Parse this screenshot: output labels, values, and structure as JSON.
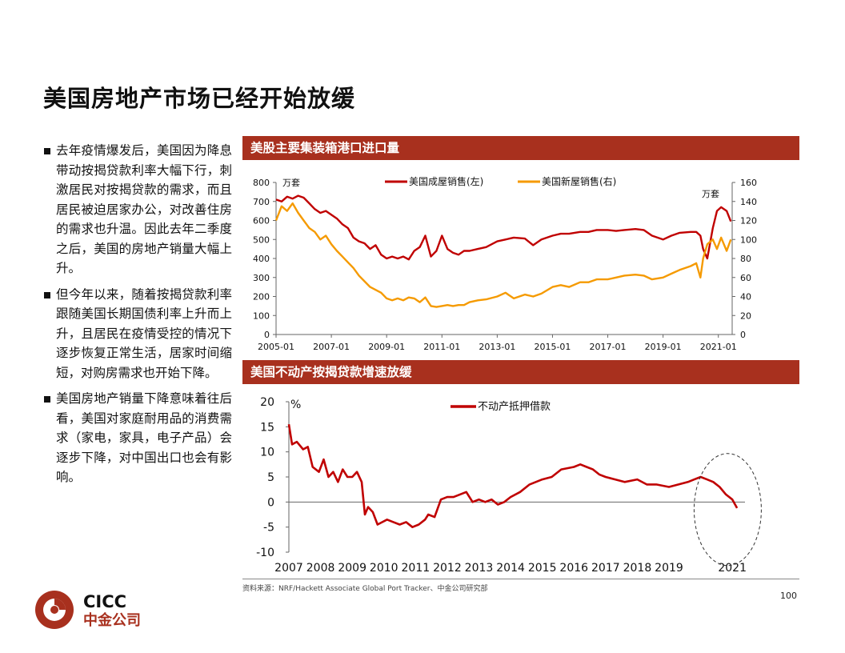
{
  "title": "美国房地产市场已经开始放缓",
  "bullets": [
    "去年疫情爆发后，美国因为降息带动按揭贷款利率大幅下行，刺激居民对按揭贷款的需求，而且居民被迫居家办公，对改善住房的需求也升温。因此去年二季度之后，美国的房地产销量大幅上升。",
    "但今年以来，随着按揭贷款利率跟随美国长期国债利率上升而上升，且居民在疫情受控的情况下逐步恢复正常生活，居家时间缩短，对购房需求也开始下降。",
    "美国房地产销量下降意味着往后看，美国对家庭耐用品的消费需求（家电，家具，电子产品）会逐步下降，对中国出口也会有影响。"
  ],
  "source": "资料来源：NRF/Hackett Associate Global Port Tracker、中金公司研究部",
  "page_number": "100",
  "logo": {
    "en": "CICC",
    "cn": "中金公司"
  },
  "colors": {
    "brand_red": "#a8301e",
    "line_red": "#c00000",
    "line_orange": "#f59a00"
  },
  "chart_data": [
    {
      "type": "line",
      "title": "美股主要集装箱港口进口量",
      "left_unit": "万套",
      "right_unit": "万套",
      "ylim_left": [
        0,
        800
      ],
      "ylim_right": [
        0,
        160
      ],
      "yticks_left": [
        0,
        100,
        200,
        300,
        400,
        500,
        600,
        700,
        800
      ],
      "yticks_right": [
        0,
        20,
        40,
        60,
        80,
        100,
        120,
        140,
        160
      ],
      "xlim": [
        2005.0,
        2021.5
      ],
      "xticks": [
        2005,
        2007,
        2009,
        2011,
        2013,
        2015,
        2017,
        2019,
        2021
      ],
      "xtick_labels": [
        "2005-01",
        "2007-01",
        "2009-01",
        "2011-01",
        "2013-01",
        "2015-01",
        "2017-01",
        "2019-01",
        "2021-01"
      ],
      "legend_position": "top-center",
      "grid": false,
      "series": [
        {
          "name": "美国成屋销售(左)",
          "axis": "left",
          "color": "#c00000",
          "x": [
            2005.0,
            2005.2,
            2005.4,
            2005.6,
            2005.8,
            2006.0,
            2006.2,
            2006.4,
            2006.6,
            2006.8,
            2007.0,
            2007.2,
            2007.4,
            2007.6,
            2007.8,
            2008.0,
            2008.2,
            2008.4,
            2008.6,
            2008.8,
            2009.0,
            2009.2,
            2009.4,
            2009.6,
            2009.8,
            2010.0,
            2010.2,
            2010.4,
            2010.6,
            2010.8,
            2011.0,
            2011.2,
            2011.4,
            2011.6,
            2011.8,
            2012.0,
            2012.3,
            2012.6,
            2013.0,
            2013.3,
            2013.6,
            2014.0,
            2014.3,
            2014.6,
            2015.0,
            2015.3,
            2015.6,
            2016.0,
            2016.3,
            2016.6,
            2017.0,
            2017.3,
            2017.6,
            2018.0,
            2018.3,
            2018.6,
            2019.0,
            2019.3,
            2019.6,
            2020.0,
            2020.2,
            2020.35,
            2020.45,
            2020.6,
            2020.8,
            2020.95,
            2021.1,
            2021.3,
            2021.45
          ],
          "values": [
            710,
            700,
            725,
            715,
            730,
            720,
            690,
            660,
            640,
            650,
            630,
            610,
            580,
            560,
            510,
            490,
            480,
            450,
            470,
            420,
            400,
            410,
            400,
            410,
            395,
            440,
            460,
            520,
            410,
            440,
            520,
            450,
            430,
            420,
            440,
            440,
            450,
            460,
            490,
            500,
            510,
            505,
            470,
            500,
            520,
            530,
            530,
            540,
            540,
            550,
            550,
            545,
            550,
            555,
            550,
            520,
            500,
            520,
            535,
            540,
            540,
            520,
            450,
            400,
            560,
            650,
            670,
            650,
            595
          ]
        },
        {
          "name": "美国新屋销售(右)",
          "axis": "right",
          "color": "#f59a00",
          "x": [
            2005.0,
            2005.2,
            2005.4,
            2005.6,
            2005.8,
            2006.0,
            2006.2,
            2006.4,
            2006.6,
            2006.8,
            2007.0,
            2007.2,
            2007.4,
            2007.6,
            2007.8,
            2008.0,
            2008.2,
            2008.4,
            2008.6,
            2008.8,
            2009.0,
            2009.2,
            2009.4,
            2009.6,
            2009.8,
            2010.0,
            2010.2,
            2010.4,
            2010.6,
            2010.8,
            2011.0,
            2011.2,
            2011.4,
            2011.6,
            2011.8,
            2012.0,
            2012.3,
            2012.6,
            2013.0,
            2013.3,
            2013.6,
            2014.0,
            2014.3,
            2014.6,
            2015.0,
            2015.3,
            2015.6,
            2016.0,
            2016.3,
            2016.6,
            2017.0,
            2017.3,
            2017.6,
            2018.0,
            2018.3,
            2018.6,
            2019.0,
            2019.3,
            2019.6,
            2020.0,
            2020.2,
            2020.35,
            2020.45,
            2020.6,
            2020.8,
            2020.95,
            2021.1,
            2021.3,
            2021.45
          ],
          "values": [
            120,
            135,
            130,
            138,
            128,
            120,
            112,
            108,
            100,
            104,
            95,
            88,
            82,
            76,
            70,
            62,
            56,
            50,
            47,
            44,
            38,
            36,
            38,
            36,
            39,
            38,
            34,
            39,
            30,
            29,
            30,
            31,
            30,
            31,
            31,
            34,
            36,
            37,
            40,
            44,
            38,
            42,
            40,
            43,
            50,
            52,
            50,
            55,
            55,
            58,
            58,
            60,
            62,
            63,
            62,
            58,
            60,
            64,
            68,
            72,
            75,
            60,
            80,
            95,
            100,
            90,
            102,
            88,
            100
          ]
        }
      ]
    },
    {
      "type": "line",
      "title": "美国不动产按揭贷款增速放缓",
      "unit": "%",
      "ylim": [
        -10,
        20
      ],
      "yticks": [
        -10,
        -5,
        0,
        5,
        10,
        15,
        20
      ],
      "xlim": [
        2007.0,
        2021.4
      ],
      "xticks": [
        2007,
        2008,
        2009,
        2010,
        2011,
        2012,
        2013,
        2014,
        2015,
        2016,
        2017,
        2018,
        2019,
        2020,
        2021
      ],
      "xtick_labels": [
        "2007",
        "2008",
        "2009",
        "2010",
        "2011",
        "2012",
        "2013",
        "2014",
        "2015",
        "2016",
        "2017",
        "2018",
        "2019",
        "",
        "2021"
      ],
      "legend_position": "top-center",
      "grid": false,
      "annotation": "dashed ellipse highlighting 2019-2021",
      "series": [
        {
          "name": "不动产抵押借款",
          "color": "#c00000",
          "x": [
            2007.0,
            2007.1,
            2007.25,
            2007.45,
            2007.6,
            2007.75,
            2007.95,
            2008.1,
            2008.25,
            2008.4,
            2008.55,
            2008.7,
            2008.85,
            2009.0,
            2009.15,
            2009.3,
            2009.4,
            2009.5,
            2009.65,
            2009.8,
            2009.95,
            2010.1,
            2010.3,
            2010.5,
            2010.7,
            2010.9,
            2011.1,
            2011.3,
            2011.4,
            2011.6,
            2011.8,
            2012.0,
            2012.2,
            2012.4,
            2012.6,
            2012.8,
            2013.0,
            2013.2,
            2013.4,
            2013.6,
            2013.8,
            2014.0,
            2014.3,
            2014.6,
            2015.0,
            2015.3,
            2015.6,
            2016.0,
            2016.2,
            2016.4,
            2016.6,
            2016.8,
            2017.0,
            2017.3,
            2017.6,
            2018.0,
            2018.3,
            2018.6,
            2019.0,
            2019.3,
            2019.6,
            2019.8,
            2020.0,
            2020.2,
            2020.4,
            2020.6,
            2020.8,
            2021.0,
            2021.15
          ],
          "values": [
            15.5,
            11.5,
            12,
            10.5,
            11,
            7,
            6,
            8.5,
            5,
            6,
            4,
            6.5,
            5,
            5,
            6,
            4,
            -2.5,
            -1,
            -2,
            -4.5,
            -4,
            -3.5,
            -4,
            -4.5,
            -4,
            -5,
            -4.5,
            -3.5,
            -2.5,
            -3,
            0.5,
            1,
            1,
            1.5,
            2,
            0,
            0.5,
            0,
            0.5,
            -0.5,
            0,
            1,
            2,
            3.5,
            4.5,
            5,
            6.5,
            7,
            7.5,
            7,
            6.5,
            5.5,
            5,
            4.5,
            4,
            4.5,
            3.5,
            3.5,
            3,
            3.5,
            4,
            4.5,
            5,
            4.5,
            4,
            3,
            1.5,
            0.5,
            -1.2
          ]
        }
      ]
    }
  ]
}
